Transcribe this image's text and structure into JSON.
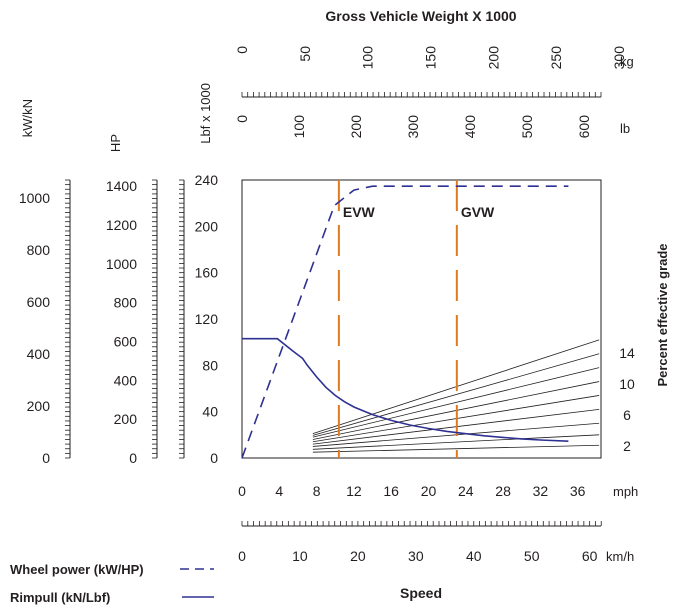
{
  "chart_data": {
    "type": "line",
    "title": "Gross Vehicle Weight X 1000",
    "xlabel": "Speed",
    "right_label": "Percent effective grade",
    "x_units": {
      "mph": "mph",
      "kmh": "km/h"
    },
    "left_axes": [
      {
        "label": "kW/kN",
        "ticks": [
          "1000",
          "800",
          "600",
          "400",
          "200",
          "0"
        ],
        "values": [
          1000,
          800,
          600,
          400,
          200,
          0
        ],
        "max": 1070
      },
      {
        "label": "HP",
        "ticks": [
          "1400",
          "1200",
          "1000",
          "800",
          "600",
          "400",
          "200",
          "0"
        ],
        "values": [
          1400,
          1200,
          1000,
          800,
          600,
          400,
          200,
          0
        ],
        "max": 1432
      },
      {
        "label": "Lbf x 1000",
        "ticks": [
          "240",
          "200",
          "160",
          "120",
          "80",
          "40",
          "0"
        ],
        "values": [
          240,
          200,
          160,
          120,
          80,
          40,
          0
        ],
        "max": 240
      }
    ],
    "top_axes": {
      "kg": {
        "unit": "kg",
        "ticks": [
          "0",
          "50",
          "100",
          "150",
          "200",
          "250",
          "300"
        ],
        "values": [
          0,
          50,
          100,
          150,
          200,
          250,
          300
        ]
      },
      "lb": {
        "unit": "lb",
        "ticks": [
          "0",
          "100",
          "200",
          "300",
          "400",
          "500",
          "600"
        ],
        "values": [
          0,
          100,
          200,
          300,
          400,
          500,
          600
        ]
      }
    },
    "x_axis_mph": {
      "ticks": [
        "0",
        "4",
        "8",
        "12",
        "16",
        "20",
        "24",
        "28",
        "32",
        "36"
      ],
      "values": [
        0,
        4,
        8,
        12,
        16,
        20,
        24,
        28,
        32,
        36
      ],
      "xlim": [
        0,
        38.5
      ]
    },
    "x_axis_kmh": {
      "ticks": [
        "0",
        "10",
        "20",
        "30",
        "40",
        "50",
        "60"
      ],
      "values": [
        0,
        10,
        20,
        30,
        40,
        50,
        60
      ]
    },
    "grade_labels": [
      "14",
      "10",
      "6",
      "2"
    ],
    "markers": [
      {
        "label": "EVW",
        "weight_lb": 170,
        "color": "#e07a1f"
      },
      {
        "label": "GVW",
        "weight_lb": 377,
        "color": "#e07a1f"
      }
    ],
    "series": [
      {
        "name": "Wheel power (kW/HP)",
        "style": "dashed",
        "color": "#2e3192",
        "unit": "HP",
        "points": [
          [
            0,
            0
          ],
          [
            9.9,
            1300
          ],
          [
            12,
            1380
          ],
          [
            14,
            1400
          ],
          [
            35,
            1400
          ]
        ]
      },
      {
        "name": "Rimpull (kN/Lbf)",
        "style": "solid",
        "color": "#2e3192",
        "unit": "Lbf x 1000",
        "points": [
          [
            0,
            103
          ],
          [
            3.8,
            103
          ],
          [
            5.5,
            92
          ],
          [
            6.5,
            86
          ],
          [
            7,
            80
          ],
          [
            8,
            70
          ],
          [
            9,
            61
          ],
          [
            10,
            54
          ],
          [
            11,
            48.5
          ],
          [
            12,
            44
          ],
          [
            14,
            37.5
          ],
          [
            16,
            32.5
          ],
          [
            18,
            28.5
          ],
          [
            20,
            25.5
          ],
          [
            22,
            23
          ],
          [
            24,
            21
          ],
          [
            26,
            19.2
          ],
          [
            28,
            17.8
          ],
          [
            30,
            16.5
          ],
          [
            32,
            15.5
          ],
          [
            35,
            14.5
          ]
        ]
      }
    ],
    "grade_lines": [
      {
        "x0": 7.6,
        "y0": 21,
        "x1": 38.3,
        "y1": 102
      },
      {
        "x0": 7.6,
        "y0": 19.5,
        "x1": 38.3,
        "y1": 90
      },
      {
        "x0": 7.6,
        "y0": 18,
        "x1": 38.3,
        "y1": 78
      },
      {
        "x0": 7.6,
        "y0": 16,
        "x1": 38.3,
        "y1": 66
      },
      {
        "x0": 7.6,
        "y0": 14,
        "x1": 38.3,
        "y1": 54
      },
      {
        "x0": 7.6,
        "y0": 12,
        "x1": 38.3,
        "y1": 42
      },
      {
        "x0": 7.6,
        "y0": 10,
        "x1": 38.3,
        "y1": 30
      },
      {
        "x0": 7.6,
        "y0": 7.5,
        "x1": 38.3,
        "y1": 20
      },
      {
        "x0": 7.6,
        "y0": 5,
        "x1": 38.3,
        "y1": 11
      }
    ]
  },
  "legend": [
    {
      "label": "Wheel power (kW/HP)",
      "style": "dashed"
    },
    {
      "label": "Rimpull (kN/Lbf)",
      "style": "solid"
    }
  ]
}
